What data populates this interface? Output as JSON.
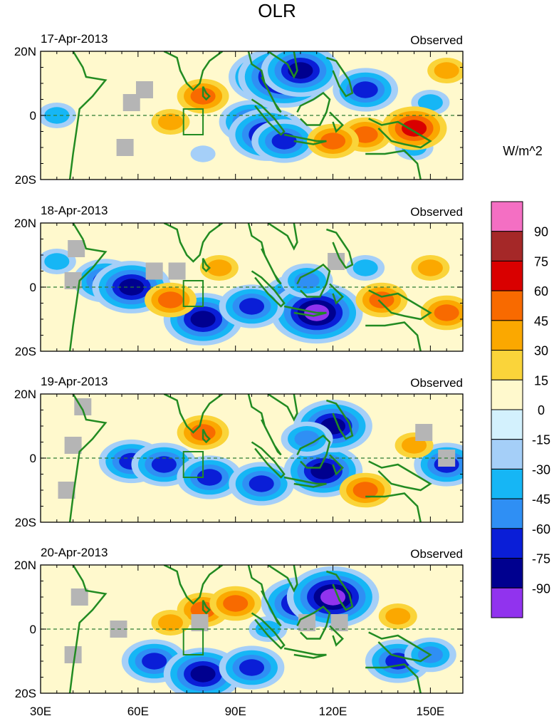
{
  "chart_data": {
    "type": "heatmap",
    "title": "OLR",
    "units": "W/m^2",
    "subtitle_right": "Observed",
    "x_axis": {
      "range": [
        30,
        160
      ],
      "ticks": [
        30,
        60,
        90,
        120,
        150
      ],
      "tick_labels": [
        "30E",
        "60E",
        "90E",
        "120E",
        "150E"
      ]
    },
    "y_axis": {
      "range": [
        -20,
        20
      ],
      "ticks": [
        20,
        0,
        -20
      ],
      "tick_labels": [
        "20N",
        "0",
        "20S"
      ]
    },
    "colorbar": {
      "levels": [
        -90,
        -75,
        -60,
        -45,
        -30,
        -15,
        0,
        15,
        30,
        45,
        60,
        75,
        90
      ],
      "labels": [
        "90",
        "75",
        "60",
        "45",
        "30",
        "15",
        "0",
        "-15",
        "-30",
        "-45",
        "-60",
        "-75",
        "-90"
      ],
      "colors": [
        "#f46fc3",
        "#a52828",
        "#d90000",
        "#f86a00",
        "#fba800",
        "#fad43a",
        "#fff9cd",
        "#d3f1fd",
        "#a5cff8",
        "#16b6f5",
        "#2f8ff4",
        "#0a1ed7",
        "#00008f",
        "#9133ee"
      ]
    },
    "panels": [
      {
        "date": "17-Apr-2013",
        "label": "Observed",
        "cells": [
          {
            "lon": 100,
            "lat": 12,
            "v": -75
          },
          {
            "lon": 105,
            "lat": 12,
            "v": -90
          },
          {
            "lon": 110,
            "lat": 14,
            "v": -75
          },
          {
            "lon": 95,
            "lat": -2,
            "v": -60
          },
          {
            "lon": 100,
            "lat": -6,
            "v": -75
          },
          {
            "lon": 105,
            "lat": -8,
            "v": -60
          },
          {
            "lon": 130,
            "lat": 8,
            "v": -60
          },
          {
            "lon": 150,
            "lat": 4,
            "v": -30
          },
          {
            "lon": 35,
            "lat": 0,
            "v": -30
          },
          {
            "lon": 80,
            "lat": -12,
            "v": -15
          },
          {
            "lon": 145,
            "lat": -10,
            "v": -30
          },
          {
            "lon": 80,
            "lat": 6,
            "v": 45
          },
          {
            "lon": 130,
            "lat": -6,
            "v": 45
          },
          {
            "lon": 145,
            "lat": -4,
            "v": 60
          },
          {
            "lon": 70,
            "lat": -2,
            "v": 30
          },
          {
            "lon": 155,
            "lat": 14,
            "v": 30
          },
          {
            "lon": 120,
            "lat": -8,
            "v": 45
          }
        ],
        "missing": [
          {
            "lon": 58,
            "lat": 4
          },
          {
            "lon": 56,
            "lat": -10
          },
          {
            "lon": 62,
            "lat": 8
          }
        ]
      },
      {
        "date": "18-Apr-2013",
        "label": "Observed",
        "cells": [
          {
            "lon": 50,
            "lat": 2,
            "v": -60
          },
          {
            "lon": 58,
            "lat": 0,
            "v": -75
          },
          {
            "lon": 80,
            "lat": -10,
            "v": -75
          },
          {
            "lon": 110,
            "lat": -4,
            "v": -75
          },
          {
            "lon": 115,
            "lat": -8,
            "v": -90
          },
          {
            "lon": 95,
            "lat": -6,
            "v": -60
          },
          {
            "lon": 112,
            "lat": 2,
            "v": -45
          },
          {
            "lon": 130,
            "lat": 6,
            "v": -30
          },
          {
            "lon": 35,
            "lat": 8,
            "v": -30
          },
          {
            "lon": 70,
            "lat": -4,
            "v": 45
          },
          {
            "lon": 135,
            "lat": -4,
            "v": 45
          },
          {
            "lon": 155,
            "lat": -8,
            "v": 45
          },
          {
            "lon": 85,
            "lat": 6,
            "v": 30
          },
          {
            "lon": 150,
            "lat": 6,
            "v": 30
          }
        ],
        "missing": [
          {
            "lon": 41,
            "lat": 12
          },
          {
            "lon": 40,
            "lat": 2
          },
          {
            "lon": 65,
            "lat": 5
          },
          {
            "lon": 72,
            "lat": 5
          },
          {
            "lon": 121,
            "lat": 8
          }
        ]
      },
      {
        "date": "19-Apr-2013",
        "label": "Observed",
        "cells": [
          {
            "lon": 58,
            "lat": -1,
            "v": -60
          },
          {
            "lon": 68,
            "lat": -2,
            "v": -60
          },
          {
            "lon": 82,
            "lat": -6,
            "v": -60
          },
          {
            "lon": 98,
            "lat": -8,
            "v": -60
          },
          {
            "lon": 117,
            "lat": -4,
            "v": -75
          },
          {
            "lon": 120,
            "lat": 10,
            "v": -75
          },
          {
            "lon": 155,
            "lat": -2,
            "v": -60
          },
          {
            "lon": 112,
            "lat": 6,
            "v": -45
          },
          {
            "lon": 80,
            "lat": 8,
            "v": 45
          },
          {
            "lon": 130,
            "lat": -10,
            "v": 45
          },
          {
            "lon": 145,
            "lat": 4,
            "v": 30
          }
        ],
        "missing": [
          {
            "lon": 40,
            "lat": 4
          },
          {
            "lon": 38,
            "lat": -10
          },
          {
            "lon": 43,
            "lat": 16
          },
          {
            "lon": 148,
            "lat": 8
          },
          {
            "lon": 155,
            "lat": 0
          }
        ]
      },
      {
        "date": "20-Apr-2013",
        "label": "Observed",
        "cells": [
          {
            "lon": 65,
            "lat": -10,
            "v": -60
          },
          {
            "lon": 80,
            "lat": -14,
            "v": -75
          },
          {
            "lon": 95,
            "lat": -12,
            "v": -60
          },
          {
            "lon": 110,
            "lat": 8,
            "v": -75
          },
          {
            "lon": 120,
            "lat": 10,
            "v": -90
          },
          {
            "lon": 140,
            "lat": -10,
            "v": -60
          },
          {
            "lon": 150,
            "lat": -8,
            "v": -45
          },
          {
            "lon": 100,
            "lat": 0,
            "v": -30
          },
          {
            "lon": 80,
            "lat": 6,
            "v": 45
          },
          {
            "lon": 90,
            "lat": 8,
            "v": 45
          },
          {
            "lon": 70,
            "lat": 2,
            "v": 30
          },
          {
            "lon": 140,
            "lat": 4,
            "v": 30
          }
        ],
        "missing": [
          {
            "lon": 42,
            "lat": 10
          },
          {
            "lon": 40,
            "lat": -8
          },
          {
            "lon": 54,
            "lat": 0
          },
          {
            "lon": 79,
            "lat": 2
          },
          {
            "lon": 112,
            "lat": 2
          },
          {
            "lon": 122,
            "lat": 2
          }
        ]
      }
    ]
  }
}
